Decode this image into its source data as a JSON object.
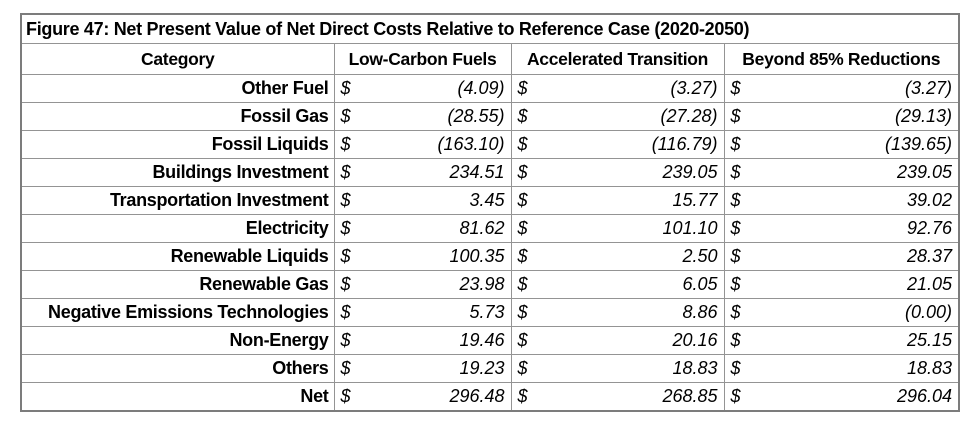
{
  "figure": {
    "title": "Figure 47: Net Present Value of Net Direct Costs Relative to Reference Case (2020-2050)"
  },
  "table": {
    "columns": [
      "Category",
      "Low-Carbon Fuels",
      "Accelerated Transition",
      "Beyond 85% Reductions"
    ],
    "currency_symbol": "$",
    "rows": [
      {
        "category": "Other Fuel",
        "values": [
          "(4.09)",
          "(3.27)",
          "(3.27)"
        ]
      },
      {
        "category": "Fossil Gas",
        "values": [
          "(28.55)",
          "(27.28)",
          "(29.13)"
        ]
      },
      {
        "category": "Fossil Liquids",
        "values": [
          "(163.10)",
          "(116.79)",
          "(139.65)"
        ]
      },
      {
        "category": "Buildings Investment",
        "values": [
          "234.51",
          "239.05",
          "239.05"
        ]
      },
      {
        "category": "Transportation Investment",
        "values": [
          "3.45",
          "15.77",
          "39.02"
        ]
      },
      {
        "category": "Electricity",
        "values": [
          "81.62",
          "101.10",
          "92.76"
        ]
      },
      {
        "category": "Renewable Liquids",
        "values": [
          "100.35",
          "2.50",
          "28.37"
        ]
      },
      {
        "category": "Renewable Gas",
        "values": [
          "23.98",
          "6.05",
          "21.05"
        ]
      },
      {
        "category": "Negative Emissions Technologies",
        "values": [
          "5.73",
          "8.86",
          "(0.00)"
        ]
      },
      {
        "category": "Non-Energy",
        "values": [
          "19.46",
          "20.16",
          "25.15"
        ]
      },
      {
        "category": "Others",
        "values": [
          "19.23",
          "18.83",
          "18.83"
        ]
      },
      {
        "category": "Net",
        "values": [
          "296.48",
          "268.85",
          "296.04"
        ]
      }
    ]
  },
  "chart_data": {
    "type": "table",
    "title": "Figure 47: Net Present Value of Net Direct Costs Relative to Reference Case (2020-2050)",
    "categories": [
      "Other Fuel",
      "Fossil Gas",
      "Fossil Liquids",
      "Buildings Investment",
      "Transportation Investment",
      "Electricity",
      "Renewable Liquids",
      "Renewable Gas",
      "Negative Emissions Technologies",
      "Non-Energy",
      "Others",
      "Net"
    ],
    "series": [
      {
        "name": "Low-Carbon Fuels",
        "values": [
          -4.09,
          -28.55,
          -163.1,
          234.51,
          3.45,
          81.62,
          100.35,
          23.98,
          5.73,
          19.46,
          19.23,
          296.48
        ]
      },
      {
        "name": "Accelerated Transition",
        "values": [
          -3.27,
          -27.28,
          -116.79,
          239.05,
          15.77,
          101.1,
          2.5,
          6.05,
          8.86,
          20.16,
          18.83,
          268.85
        ]
      },
      {
        "name": "Beyond 85% Reductions",
        "values": [
          -3.27,
          -29.13,
          -139.65,
          239.05,
          39.02,
          92.76,
          28.37,
          21.05,
          -0.0,
          25.15,
          18.83,
          296.04
        ]
      }
    ],
    "number_format": "accounting: $ symbol left-aligned, value right-aligned, negatives in parentheses"
  },
  "colors": {
    "background": "#ffffff",
    "text": "#000000",
    "border_outer": "#7c7c7c",
    "border_inner": "#949494"
  }
}
